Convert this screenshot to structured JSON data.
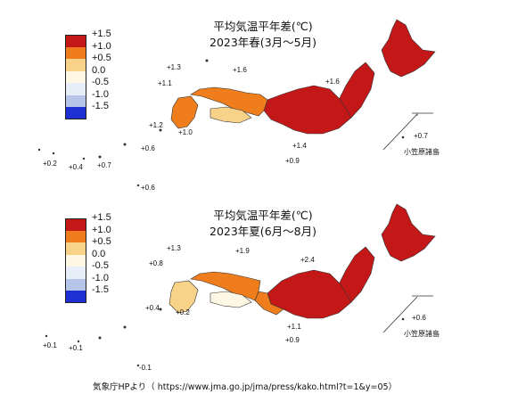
{
  "legend": [
    {
      "label": "+1.5",
      "color": "#c41818"
    },
    {
      "label": "+1.0",
      "color": "#ef7d1b"
    },
    {
      "label": "+0.5",
      "color": "#f8d289"
    },
    {
      "label": "0.0",
      "color": "#fdf7e4"
    },
    {
      "label": "-0.5",
      "color": "#e8eef8"
    },
    {
      "label": "-1.0",
      "color": "#b6c6ea"
    },
    {
      "label": "-1.5",
      "color": "#1e2fd3"
    }
  ],
  "panels": [
    {
      "title_line1": "平均気温平年差(℃)",
      "title_line2": "2023年春(3月～5月)",
      "ogasawara_label": "小笠原諸島",
      "values": [
        "+1.3",
        "+1.6",
        "+1.1",
        "+1.6",
        "+1.2",
        "+1.0",
        "+0.6",
        "+1.4",
        "+0.9",
        "+0.2",
        "+0.4",
        "+0.7",
        "+0.6",
        "+0.7"
      ]
    },
    {
      "title_line1": "平均気温平年差(℃)",
      "title_line2": "2023年夏(6月～8月)",
      "ogasawara_label": "小笠原諸島",
      "values": [
        "+1.3",
        "+1.9",
        "+2.4",
        "+0.8",
        "+0.4",
        "+0.2",
        "+1.1",
        "+0.9",
        "+0.1",
        "+0.1",
        "-0.1",
        "+0.6"
      ]
    }
  ],
  "source": "気象庁HPより（ https://www.jma.go.jp/jma/press/kako.html?t=1&y=05）",
  "colors": {
    "hot": "#c41818",
    "warm": "#ef7d1b",
    "mild": "#f8d289",
    "cool": "#fdf7e4"
  }
}
